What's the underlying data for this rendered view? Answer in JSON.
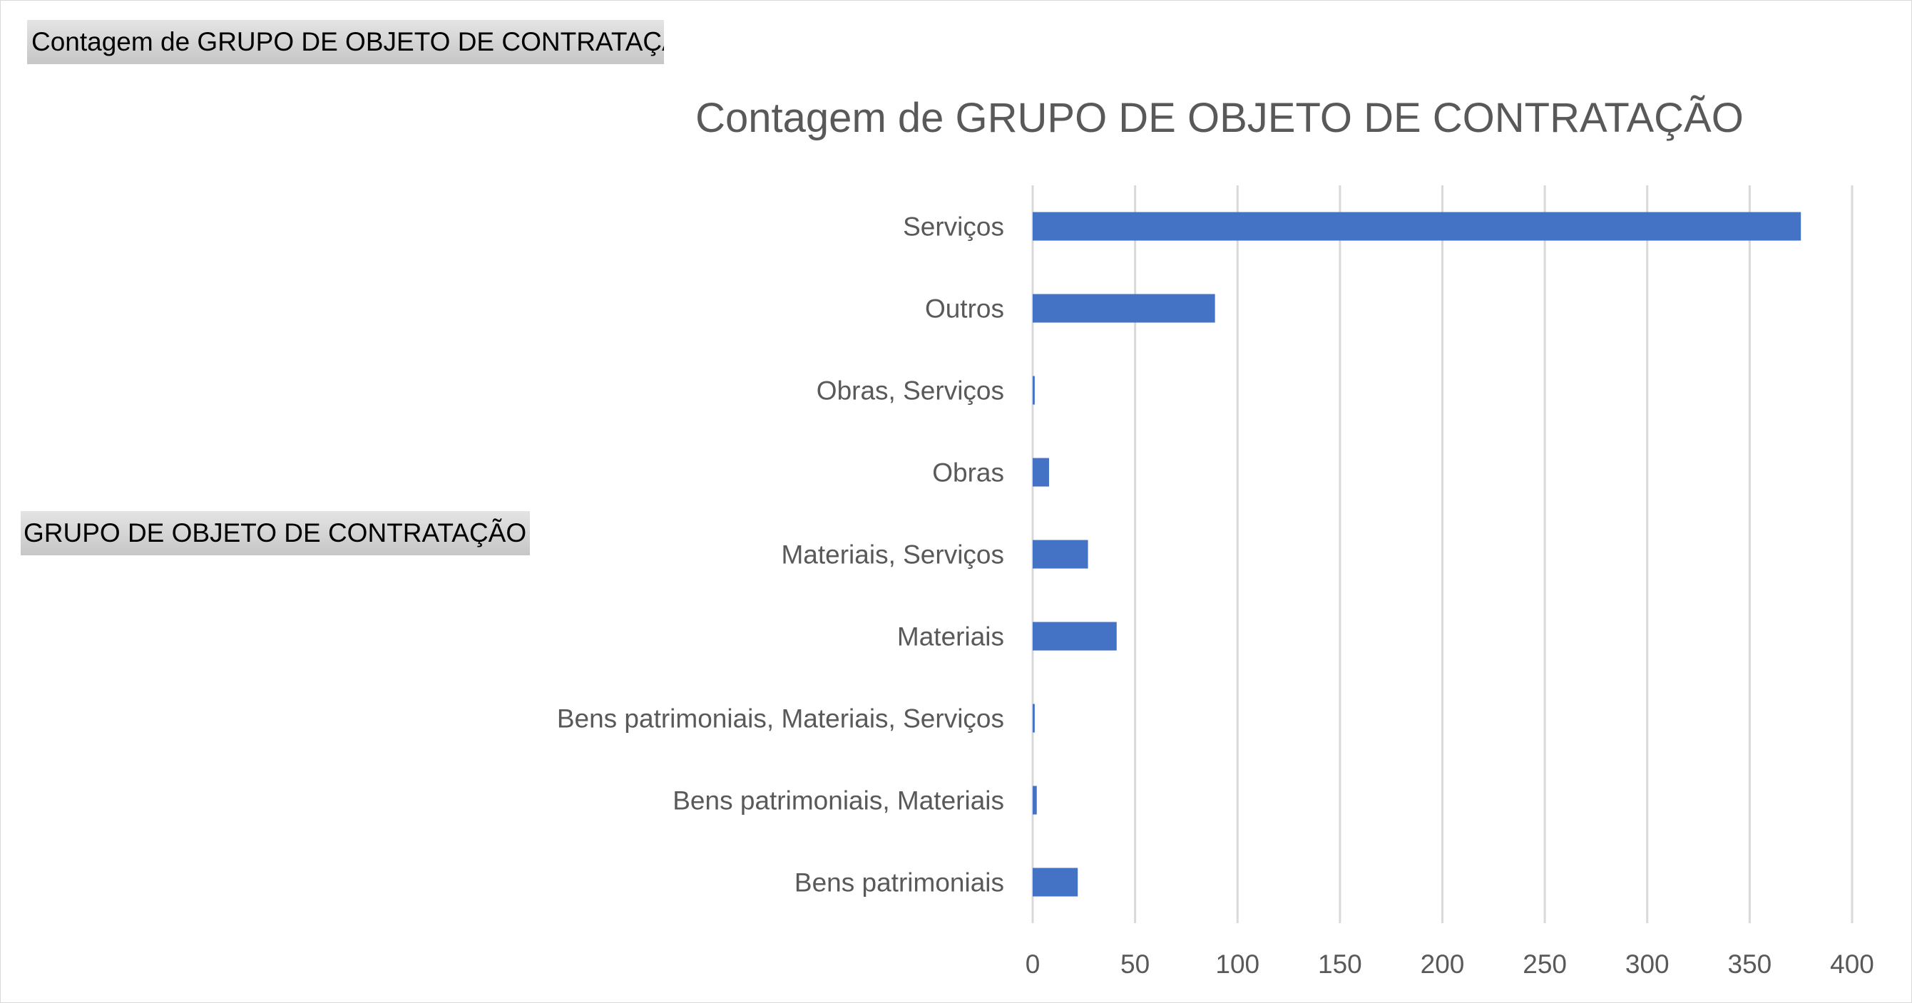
{
  "pivot": {
    "value_field_button": "Contagem de GRUPO DE OBJETO DE CONTRATAÇÃO",
    "axis_field_button": "GRUPO DE OBJETO DE CONTRATAÇÃO",
    "axis_field_dropdown_icon": "dropdown-arrow-icon"
  },
  "chart_data": {
    "type": "bar",
    "orientation": "horizontal",
    "title": "Contagem de GRUPO DE OBJETO DE CONTRATAÇÃO",
    "categories": [
      "Serviços",
      "Outros",
      "Obras, Serviços",
      "Obras",
      "Materiais, Serviços",
      "Materiais",
      "Bens patrimoniais, Materiais, Serviços",
      "Bens patrimoniais, Materiais",
      "Bens patrimoniais"
    ],
    "values": [
      375,
      89,
      1,
      8,
      27,
      41,
      1,
      2,
      22
    ],
    "xlim": [
      0,
      400
    ],
    "xticks": [
      0,
      50,
      100,
      150,
      200,
      250,
      300,
      350,
      400
    ],
    "grid": true,
    "legend": "none",
    "bar_color": "#4472C4",
    "grid_color": "#d9d9d9",
    "text_color": "#595959"
  }
}
